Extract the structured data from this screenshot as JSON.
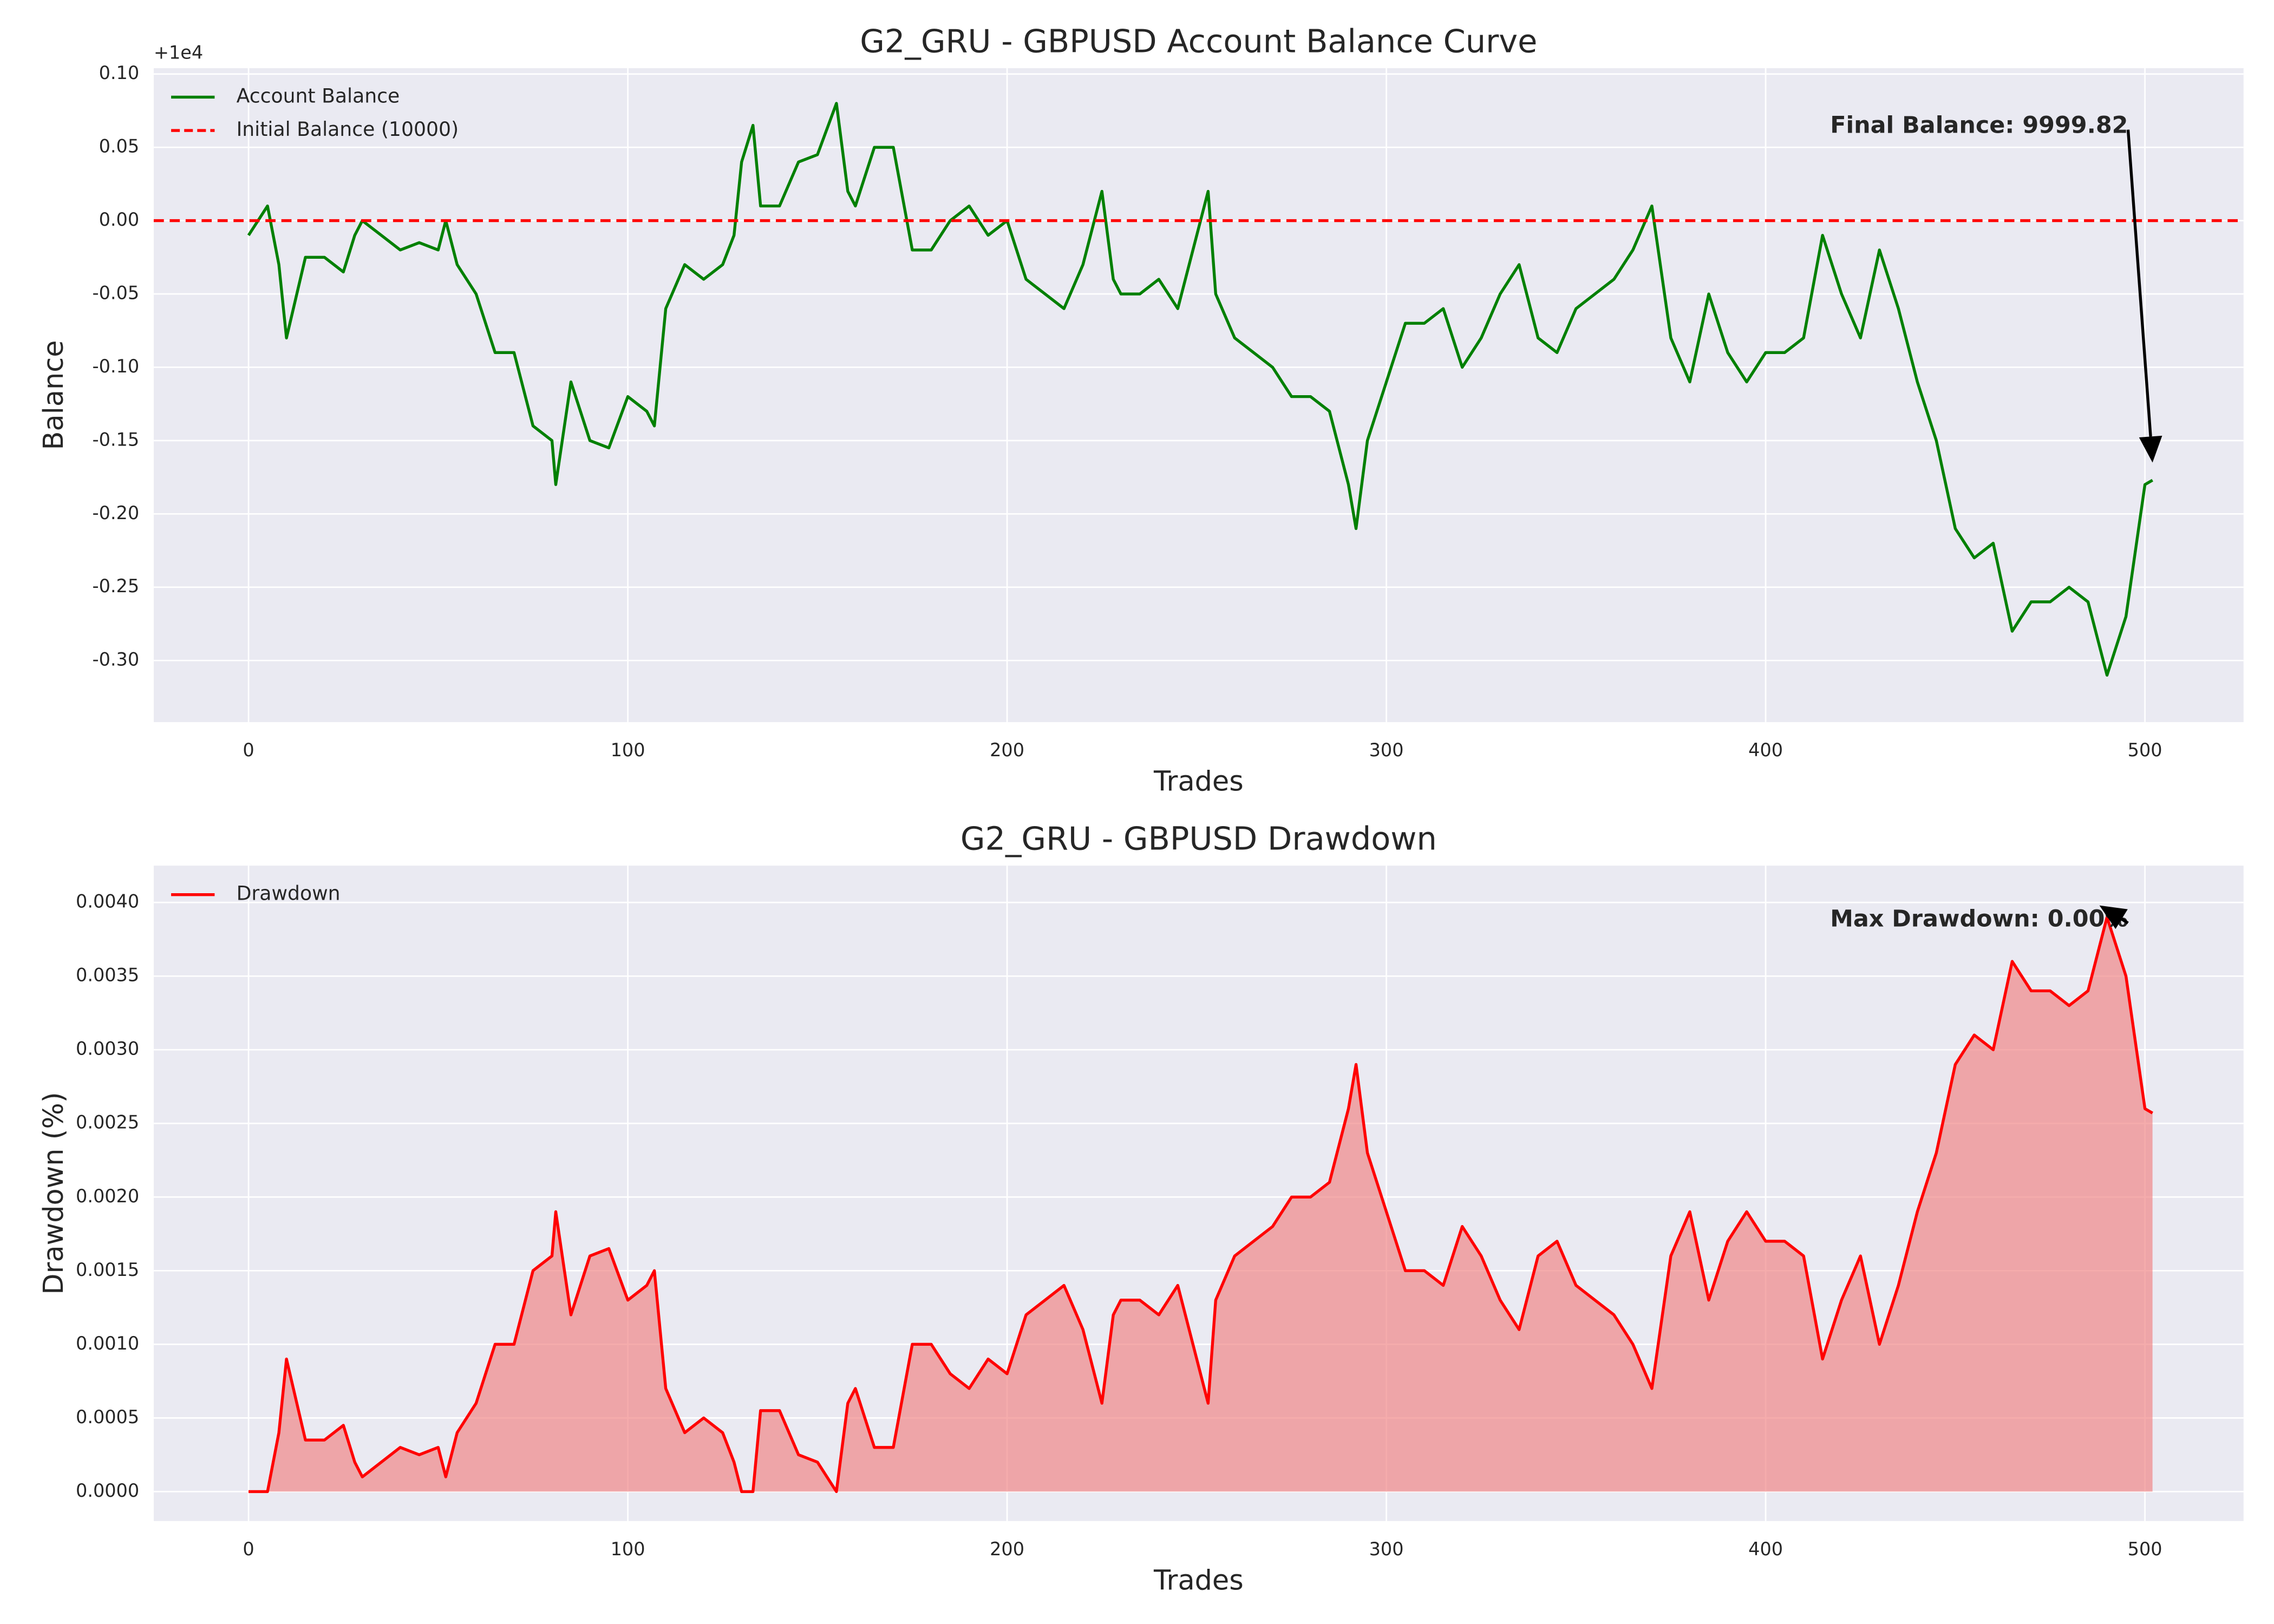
{
  "chart_data": [
    {
      "type": "line",
      "title": "G2_GRU - GBPUSD Account Balance Curve",
      "x_label": "Trades",
      "y_label": "Balance",
      "offset_text": "+1e4",
      "xlim": [
        -25,
        526
      ],
      "xticks": [
        0,
        100,
        200,
        300,
        400,
        500
      ],
      "ylim": [
        -0.342,
        0.104
      ],
      "yticks": [
        {
          "value": -0.3,
          "label": "-0.30"
        },
        -0.25,
        {
          "value": -0.2,
          "label": "-0.20"
        },
        -0.15,
        {
          "value": -0.1,
          "label": "-0.10"
        },
        -0.05,
        {
          "value": 0,
          "label": "0.00"
        },
        0.05,
        {
          "value": 0.1,
          "label": "0.10"
        }
      ],
      "grid": true,
      "legend": "upper left",
      "series": [
        {
          "name": "Account Balance",
          "color": "#008000",
          "x": [
            0,
            5,
            8,
            10,
            15,
            20,
            25,
            28,
            30,
            35,
            40,
            45,
            50,
            52,
            55,
            60,
            65,
            70,
            75,
            80,
            81,
            85,
            90,
            95,
            100,
            105,
            107,
            110,
            115,
            120,
            125,
            128,
            130,
            133,
            135,
            140,
            145,
            150,
            155,
            158,
            160,
            165,
            170,
            175,
            180,
            185,
            190,
            195,
            200,
            205,
            210,
            215,
            220,
            225,
            228,
            230,
            235,
            240,
            245,
            250,
            253,
            255,
            260,
            265,
            270,
            275,
            280,
            285,
            290,
            292,
            295,
            300,
            305,
            310,
            315,
            320,
            325,
            330,
            335,
            340,
            345,
            350,
            355,
            360,
            365,
            370,
            375,
            380,
            385,
            390,
            395,
            400,
            405,
            410,
            415,
            420,
            425,
            430,
            435,
            440,
            445,
            450,
            455,
            460,
            465,
            470,
            475,
            480,
            485,
            490,
            495,
            500,
            502
          ],
          "values": [
            -0.01,
            0.01,
            -0.03,
            -0.08,
            -0.025,
            -0.025,
            -0.035,
            -0.01,
            0.0,
            -0.01,
            -0.02,
            -0.015,
            -0.02,
            0.0,
            -0.03,
            -0.05,
            -0.09,
            -0.09,
            -0.14,
            -0.15,
            -0.18,
            -0.11,
            -0.15,
            -0.155,
            -0.12,
            -0.13,
            -0.14,
            -0.06,
            -0.03,
            -0.04,
            -0.03,
            -0.01,
            0.04,
            0.065,
            0.01,
            0.01,
            0.04,
            0.045,
            0.08,
            0.02,
            0.01,
            0.05,
            0.05,
            -0.02,
            -0.02,
            0.0,
            0.01,
            -0.01,
            0.0,
            -0.04,
            -0.05,
            -0.06,
            -0.03,
            0.02,
            -0.04,
            -0.05,
            -0.05,
            -0.04,
            -0.06,
            -0.01,
            0.02,
            -0.05,
            -0.08,
            -0.09,
            -0.1,
            -0.12,
            -0.12,
            -0.13,
            -0.18,
            -0.21,
            -0.15,
            -0.11,
            -0.07,
            -0.07,
            -0.06,
            -0.1,
            -0.08,
            -0.05,
            -0.03,
            -0.08,
            -0.09,
            -0.06,
            -0.05,
            -0.04,
            -0.02,
            0.01,
            -0.08,
            -0.11,
            -0.05,
            -0.09,
            -0.11,
            -0.09,
            -0.09,
            -0.08,
            -0.01,
            -0.05,
            -0.08,
            -0.02,
            -0.06,
            -0.11,
            -0.15,
            -0.21,
            -0.23,
            -0.22,
            -0.28,
            -0.26,
            -0.26,
            -0.25,
            -0.26,
            -0.31,
            -0.27,
            -0.18,
            -0.177
          ]
        }
      ],
      "hlines": [
        {
          "name": "Initial Balance (10000)",
          "value": 0,
          "color": "#ff0000",
          "dashed": true
        }
      ],
      "annotations": [
        {
          "text": "Final Balance: 9999.82",
          "xy": [
            502,
            -0.165
          ],
          "xytext": [
            417,
            0.064
          ]
        }
      ]
    },
    {
      "type": "area",
      "title": "G2_GRU - GBPUSD Drawdown",
      "x_label": "Trades",
      "y_label": "Drawdown (%)",
      "xlim": [
        -25,
        526
      ],
      "xticks": [
        0,
        100,
        200,
        300,
        400,
        500
      ],
      "ylim": [
        -0.0002,
        0.00425
      ],
      "yticks": [
        {
          "value": 0,
          "label": "0.0000"
        },
        0.0005,
        {
          "value": 0.001,
          "label": "0.0010"
        },
        0.0015,
        {
          "value": 0.002,
          "label": "0.0020"
        },
        0.0025,
        {
          "value": 0.003,
          "label": "0.0030"
        },
        0.0035,
        {
          "value": 0.004,
          "label": "0.0040"
        }
      ],
      "grid": true,
      "legend": "upper left",
      "series": [
        {
          "name": "Drawdown",
          "color": "#ff0000",
          "fill_color": "#f08080",
          "x": [
            0,
            5,
            8,
            10,
            15,
            20,
            25,
            28,
            30,
            35,
            40,
            45,
            50,
            52,
            55,
            60,
            65,
            70,
            75,
            80,
            81,
            85,
            90,
            95,
            100,
            105,
            107,
            110,
            115,
            120,
            125,
            128,
            130,
            133,
            135,
            140,
            145,
            150,
            155,
            158,
            160,
            165,
            170,
            175,
            180,
            185,
            190,
            195,
            200,
            205,
            210,
            215,
            220,
            225,
            228,
            230,
            235,
            240,
            245,
            250,
            253,
            255,
            260,
            265,
            270,
            275,
            280,
            285,
            290,
            292,
            295,
            300,
            305,
            310,
            315,
            320,
            325,
            330,
            335,
            340,
            345,
            350,
            355,
            360,
            365,
            370,
            375,
            380,
            385,
            390,
            395,
            400,
            405,
            410,
            415,
            420,
            425,
            430,
            435,
            440,
            445,
            450,
            455,
            460,
            465,
            470,
            475,
            480,
            485,
            490,
            495,
            500,
            502
          ],
          "values": [
            0,
            0,
            0.0004,
            0.0009,
            0.00035,
            0.00035,
            0.00045,
            0.0002,
            0.0001,
            0.0002,
            0.0003,
            0.00025,
            0.0003,
            0.0001,
            0.0004,
            0.0006,
            0.001,
            0.001,
            0.0015,
            0.0016,
            0.0019,
            0.0012,
            0.0016,
            0.00165,
            0.0013,
            0.0014,
            0.0015,
            0.0007,
            0.0004,
            0.0005,
            0.0004,
            0.0002,
            0,
            0,
            0.00055,
            0.00055,
            0.00025,
            0.0002,
            0,
            0.0006,
            0.0007,
            0.0003,
            0.0003,
            0.001,
            0.001,
            0.0008,
            0.0007,
            0.0009,
            0.0008,
            0.0012,
            0.0013,
            0.0014,
            0.0011,
            0.0006,
            0.0012,
            0.0013,
            0.0013,
            0.0012,
            0.0014,
            0.0009,
            0.0006,
            0.0013,
            0.0016,
            0.0017,
            0.0018,
            0.002,
            0.002,
            0.0021,
            0.0026,
            0.0029,
            0.0023,
            0.0019,
            0.0015,
            0.0015,
            0.0014,
            0.0018,
            0.0016,
            0.0013,
            0.0011,
            0.0016,
            0.0017,
            0.0014,
            0.0013,
            0.0012,
            0.001,
            0.0007,
            0.0016,
            0.0019,
            0.0013,
            0.0017,
            0.0019,
            0.0017,
            0.0017,
            0.0016,
            0.0009,
            0.0013,
            0.0016,
            0.001,
            0.0014,
            0.0019,
            0.0023,
            0.0029,
            0.0031,
            0.003,
            0.0036,
            0.0034,
            0.0034,
            0.0033,
            0.0034,
            0.0039,
            0.0035,
            0.0026,
            0.00257
          ]
        }
      ],
      "annotations": [
        {
          "text": "Max Drawdown: 0.00%",
          "xy": [
            488,
            0.00398
          ],
          "xytext": [
            417,
            0.00388
          ]
        }
      ]
    }
  ]
}
